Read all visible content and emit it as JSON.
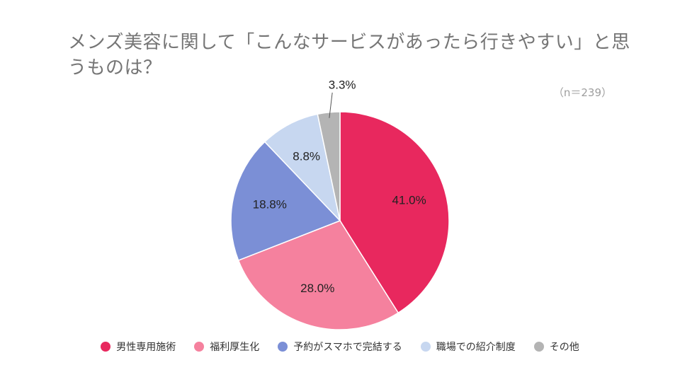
{
  "chart_data": {
    "type": "pie",
    "title": "メンズ美容に関して「こんなサービスがあったら行きやすい」と思うものは？",
    "sample_size": "（n＝239）",
    "legend_position": "bottom",
    "slices": [
      {
        "name": "男性専用施術",
        "value": 41.0,
        "label": "41.0%",
        "color": "#e8285e"
      },
      {
        "name": "福利厚生化",
        "value": 28.0,
        "label": "28.0%",
        "color": "#f5819e"
      },
      {
        "name": "予約がスマホで完結する",
        "value": 18.8,
        "label": "18.8%",
        "color": "#7b8fd6"
      },
      {
        "name": "職場での紹介制度",
        "value": 8.8,
        "label": "8.8%",
        "color": "#c7d7f0"
      },
      {
        "name": "その他",
        "value": 3.3,
        "label": "3.3%",
        "color": "#b4b4b4"
      }
    ]
  }
}
